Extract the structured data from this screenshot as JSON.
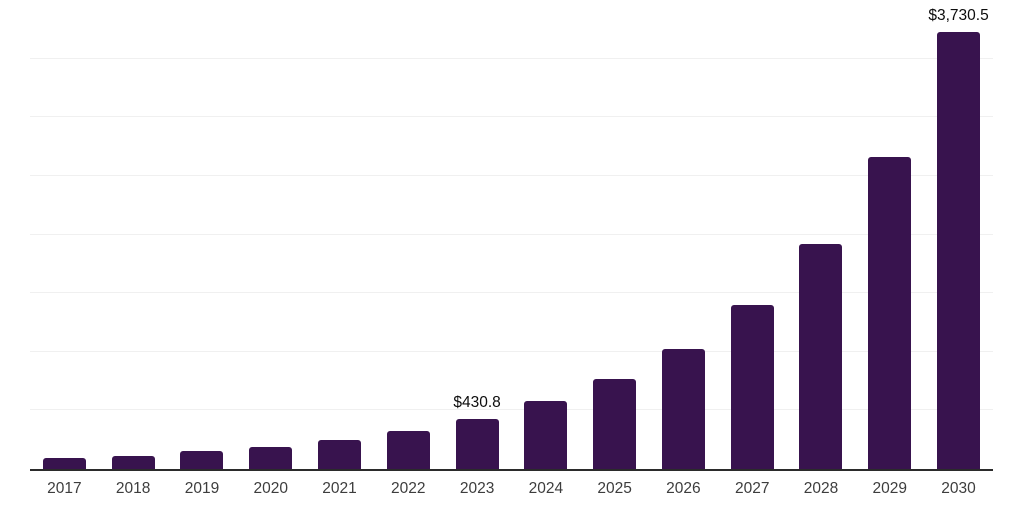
{
  "chart_data": {
    "type": "bar",
    "title": "",
    "xlabel": "",
    "ylabel": "",
    "categories": [
      "2017",
      "2018",
      "2019",
      "2020",
      "2021",
      "2022",
      "2023",
      "2024",
      "2025",
      "2026",
      "2027",
      "2028",
      "2029",
      "2030"
    ],
    "values": [
      94,
      114,
      151,
      192,
      250,
      327,
      430.8,
      577,
      765,
      1025,
      1400,
      1917,
      2660,
      3730.5
    ],
    "data_labels": [
      "",
      "",
      "",
      "",
      "",
      "",
      "$430.8",
      "",
      "",
      "",
      "",
      "",
      "",
      "$3,730.5"
    ],
    "ylim": [
      0,
      4000
    ],
    "grid_step": 500,
    "grid": "horizontal-only",
    "y_axis_labels_visible": false,
    "legend": "none",
    "colors": {
      "bar": "#38134E",
      "grid_line": "#f0f0f0",
      "axis_line": "#2b2b2b",
      "tick_label": "#3d3d3d",
      "value_label": "#0d0d0d",
      "background": "#ffffff"
    }
  }
}
